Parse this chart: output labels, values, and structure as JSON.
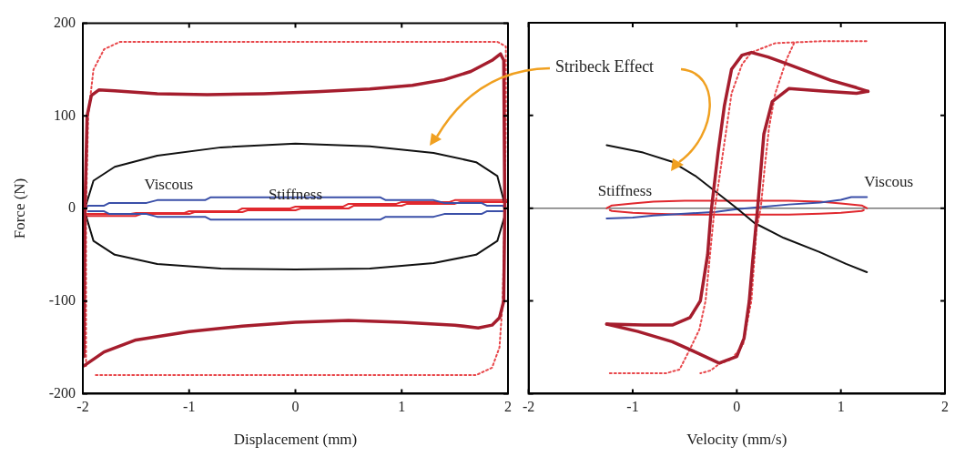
{
  "chart_data": [
    {
      "type": "line",
      "xlabel": "Displacement (mm)",
      "ylabel": "Force (N)",
      "xlim": [
        -2,
        2
      ],
      "xticks": [
        -2,
        -1,
        0,
        1,
        2
      ],
      "ylim": [
        -200,
        200
      ],
      "yticks": [
        -200,
        -100,
        0,
        100,
        200
      ],
      "grid": false,
      "legend": false,
      "marker": "none",
      "series": [
        {
          "color": "#a51d2d",
          "x": [
            -1.99,
            -1.98,
            -1.96,
            -1.92,
            -1.85,
            -1.7,
            -1.3,
            -0.83,
            -0.3,
            0.2,
            0.7,
            1.1,
            1.4,
            1.65,
            1.85,
            1.93,
            1.96,
            1.97,
            1.96,
            1.92,
            1.85,
            1.72,
            1.5,
            1.0,
            0.5,
            0,
            -0.5,
            -1,
            -1.5,
            -1.8,
            -1.99
          ],
          "values": [
            -160,
            0,
            100,
            122,
            128,
            127,
            124,
            123,
            124,
            126,
            129,
            133,
            139,
            148,
            160,
            167,
            160,
            0,
            -100,
            -118,
            -126,
            -129,
            -126,
            -123,
            -121,
            -123,
            -127,
            -133,
            -142,
            -155,
            -170
          ]
        },
        {
          "color": "#e8474b",
          "line_style": "dotted",
          "x": [
            -1.97,
            -1.97,
            -1.95,
            -1.9,
            -1.8,
            -1.65,
            1.9,
            1.98,
            1.98,
            1.97,
            1.95,
            1.92,
            1.85,
            1.7,
            -1.9
          ],
          "values": [
            -170,
            0,
            100,
            150,
            172,
            180,
            180,
            175,
            100,
            0,
            -100,
            -150,
            -172,
            -180,
            -180
          ]
        },
        {
          "color": "#111111",
          "x": [
            -1.98,
            -1.9,
            -1.7,
            -1.3,
            -0.7,
            0,
            0.7,
            1.3,
            1.7,
            1.9,
            1.98
          ],
          "values": [
            0,
            30,
            45,
            57,
            66,
            70,
            67,
            60,
            50,
            35,
            0
          ]
        },
        {
          "color": "#111111",
          "x": [
            1.97,
            1.9,
            1.7,
            1.3,
            0.7,
            0,
            -0.7,
            -1.3,
            -1.7,
            -1.9,
            -1.97
          ],
          "values": [
            -8,
            -35,
            -50,
            -59,
            -65,
            -66,
            -65,
            -60,
            -50,
            -35,
            -8
          ]
        },
        {
          "name": "Viscous",
          "color": "#3a4fa8",
          "x": [
            -1.98,
            -1.95,
            -1.8,
            -1.75,
            -1.4,
            -1.3,
            -0.85,
            -0.8,
            0.8,
            0.85,
            1.3,
            1.4,
            1.75,
            1.8,
            1.95,
            1.98
          ],
          "values": [
            0,
            3,
            3,
            6,
            6,
            9,
            9,
            12,
            12,
            9,
            9,
            6,
            6,
            3,
            3,
            0
          ]
        },
        {
          "color": "#3a4fa8",
          "x": [
            1.95,
            1.8,
            1.75,
            1.4,
            1.3,
            0.85,
            0.8,
            -0.8,
            -0.85,
            -1.3,
            -1.4,
            -1.75,
            -1.8,
            -1.95
          ],
          "values": [
            -3,
            -3,
            -6,
            -6,
            -9,
            -9,
            -12,
            -12,
            -9,
            -9,
            -6,
            -6,
            -3,
            -3
          ]
        },
        {
          "name": "Stiffness",
          "color": "#e0282e",
          "x": [
            -2,
            -1.5,
            -1.45,
            -1.0,
            -0.95,
            -0.5,
            -0.45,
            0,
            0.05,
            0.5,
            0.55,
            1.0,
            1.05,
            1.5,
            1.55,
            2,
            2,
            1.5,
            1.45,
            1.0,
            0.95,
            0.5,
            0.45,
            0,
            -0.05,
            -0.5,
            -0.55,
            -1.0,
            -1.05,
            -1.5,
            -1.55,
            -2
          ],
          "values": [
            -8,
            -8,
            -6,
            -6,
            -4,
            -4,
            -2,
            -2,
            0,
            0,
            3,
            3,
            5,
            5,
            7,
            7,
            9,
            9,
            7,
            7,
            5,
            5,
            2,
            2,
            0,
            0,
            -3,
            -3,
            -5,
            -5,
            -6,
            -6
          ]
        }
      ]
    },
    {
      "type": "line",
      "xlabel": "Velocity (mm/s)",
      "xlim": [
        -2,
        2
      ],
      "xticks": [
        -2,
        -1,
        0,
        1,
        2
      ],
      "ylim": [
        -200,
        200
      ],
      "yticks": [
        -200,
        -100,
        0,
        100,
        200
      ],
      "tick_labels": "x",
      "grid": false,
      "legend": false,
      "marker": "none",
      "ref_lines": [
        {
          "axis": "y",
          "value": 0,
          "color": "#777777"
        }
      ],
      "annotations": [
        "Stribeck Effect"
      ],
      "series": [
        {
          "color": "#a51d2d",
          "x": [
            -1.25,
            -0.9,
            -0.62,
            -0.45,
            -0.35,
            -0.28,
            -0.25,
            -0.18,
            -0.12,
            -0.05,
            0.05,
            0.14,
            0.3,
            0.5,
            0.9,
            1.15,
            1.26
          ],
          "values": [
            -125,
            -126,
            -126,
            -118,
            -100,
            -50,
            -7,
            60,
            110,
            150,
            165,
            168,
            163,
            155,
            138,
            130,
            126
          ]
        },
        {
          "color": "#a51d2d",
          "x": [
            1.26,
            1.15,
            0.85,
            0.5,
            0.34,
            0.26,
            0.2,
            0.15,
            0.12,
            0.07,
            0,
            -0.17,
            -0.4,
            -0.62,
            -0.95,
            -1.25
          ],
          "values": [
            126,
            124,
            126,
            129,
            115,
            80,
            0,
            -60,
            -100,
            -140,
            -160,
            -167,
            -155,
            -144,
            -133,
            -125
          ]
        },
        {
          "color": "#e8474b",
          "line_style": "dotted",
          "x": [
            -1.22,
            -0.68,
            -0.55,
            -0.45,
            -0.36,
            -0.3,
            -0.22,
            -0.17,
            -0.05,
            0.05,
            0.14,
            0.37,
            0.8,
            1.26
          ],
          "values": [
            -178,
            -178,
            -174,
            -152,
            -131,
            -100,
            -7,
            31,
            124,
            155,
            168,
            178,
            180,
            180
          ]
        },
        {
          "color": "#e8474b",
          "line_style": "dotted",
          "x": [
            0.55,
            0.48,
            0.37,
            0.31,
            0.27,
            0.23,
            0.19,
            0.14,
            0.06,
            -0.05,
            -0.17,
            -0.25,
            -0.35
          ],
          "values": [
            178,
            161,
            124,
            87,
            46,
            0,
            -22,
            -100,
            -147,
            -163,
            -168,
            -175,
            -178
          ]
        },
        {
          "color": "#111111",
          "x": [
            -1.25,
            -0.9,
            -0.62,
            -0.4,
            -0.17,
            0,
            0.17,
            0.45,
            0.79,
            1.05,
            1.25
          ],
          "values": [
            68,
            60,
            50,
            35,
            15,
            0,
            -16,
            -32,
            -47,
            -60,
            -69
          ]
        },
        {
          "name": "Viscous",
          "color": "#3a4fa8",
          "x": [
            -1.25,
            -1.0,
            -0.8,
            -0.5,
            -0.2,
            0,
            0.2,
            0.5,
            0.8,
            1.0,
            1.1,
            1.25
          ],
          "values": [
            -11,
            -10,
            -8,
            -6,
            -4,
            -1,
            1,
            4,
            6,
            9,
            12,
            12
          ]
        },
        {
          "name": "Stiffness",
          "color": "#e0282e",
          "x": [
            -1.25,
            -1.2,
            -1.0,
            -0.8,
            -0.5,
            0.5,
            0.8,
            1.0,
            1.2,
            1.25
          ],
          "values": [
            0,
            3,
            5,
            7,
            8,
            8,
            7,
            5,
            3,
            0
          ]
        },
        {
          "color": "#e0282e",
          "x": [
            1.22,
            1.2,
            1.0,
            0.8,
            0.5,
            -0.5,
            -0.8,
            -1.0,
            -1.2,
            -1.22
          ],
          "values": [
            -2,
            -3,
            -5,
            -6,
            -7,
            -7,
            -6,
            -5,
            -3,
            -2
          ]
        }
      ]
    }
  ]
}
